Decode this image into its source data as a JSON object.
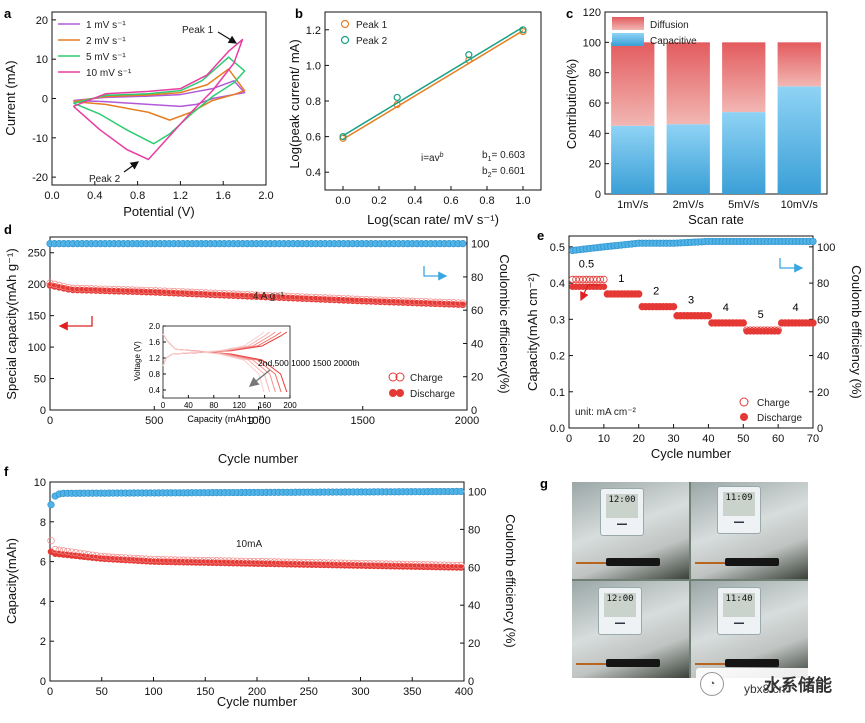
{
  "chart_data": [
    {
      "panel": "a",
      "type": "line",
      "xlabel": "Potential (V)",
      "ylabel": "Current (mA)",
      "xlim": [
        0.0,
        2.0
      ],
      "ylim": [
        -22,
        22
      ],
      "xticks": [
        "0.0",
        "0.4",
        "0.8",
        "1.2",
        "1.6",
        "2.0"
      ],
      "yticks": [
        "-20",
        "-10",
        "0",
        "10",
        "20"
      ],
      "legend": [
        "1 mV s⁻¹",
        "2 mV s⁻¹",
        "5 mV s⁻¹",
        "10 mV s⁻¹"
      ],
      "colors": [
        "#b05ad9",
        "#e67e22",
        "#2ecc71",
        "#e83ca0"
      ],
      "series": [
        {
          "name": "1 mV s⁻¹",
          "x": [
            0.2,
            0.5,
            0.9,
            1.2,
            1.5,
            1.7,
            1.8,
            1.7,
            1.5,
            1.35,
            1.2,
            0.9,
            0.5,
            0.2
          ],
          "y": [
            -0.5,
            0.3,
            0.6,
            1.0,
            2.5,
            4.5,
            1.5,
            1.0,
            0.0,
            -1.5,
            -2.0,
            -1.5,
            -0.8,
            -0.5
          ]
        },
        {
          "name": "2 mV s⁻¹",
          "x": [
            0.2,
            0.5,
            0.9,
            1.2,
            1.45,
            1.65,
            1.8,
            1.7,
            1.5,
            1.3,
            1.1,
            0.9,
            0.5,
            0.2
          ],
          "y": [
            -0.8,
            0.5,
            0.9,
            1.5,
            3.5,
            7.5,
            2.0,
            1.0,
            -0.5,
            -3.5,
            -5.5,
            -3.5,
            -1.5,
            -0.8
          ]
        },
        {
          "name": "5 mV s⁻¹",
          "x": [
            0.2,
            0.5,
            0.9,
            1.2,
            1.4,
            1.65,
            1.8,
            1.7,
            1.5,
            1.3,
            1.1,
            0.95,
            0.7,
            0.45,
            0.2
          ],
          "y": [
            -1.2,
            0.8,
            1.2,
            2.0,
            4.5,
            10.5,
            7.0,
            4.0,
            0.5,
            -4.0,
            -9.0,
            -11.5,
            -8.0,
            -4.0,
            -1.2
          ]
        },
        {
          "name": "10 mV s⁻¹",
          "x": [
            0.2,
            0.5,
            0.9,
            1.2,
            1.45,
            1.65,
            1.78,
            1.7,
            1.5,
            1.3,
            1.1,
            0.9,
            0.7,
            0.45,
            0.2
          ],
          "y": [
            -2.0,
            1.2,
            1.8,
            2.5,
            6.0,
            12.0,
            15.0,
            9.0,
            2.0,
            -3.5,
            -9.5,
            -15.5,
            -13.0,
            -8.0,
            -2.0
          ]
        }
      ],
      "annotations": [
        "Peak 1",
        "Peak 2"
      ]
    },
    {
      "panel": "b",
      "type": "scatter",
      "xlabel": "Log(scan rate/ mV s⁻¹)",
      "ylabel": "Log(peak current/ mA)",
      "xlim": [
        -0.1,
        1.1
      ],
      "ylim": [
        0.3,
        1.3
      ],
      "xticks": [
        "0.0",
        "0.2",
        "0.4",
        "0.6",
        "0.8",
        "1.0"
      ],
      "yticks": [
        "0.4",
        "0.6",
        "0.8",
        "1.0",
        "1.2"
      ],
      "series": [
        {
          "name": "Peak 1",
          "color": "#e67e22",
          "x": [
            0.0,
            0.301,
            0.699,
            1.0
          ],
          "y": [
            0.59,
            0.78,
            1.03,
            1.19
          ],
          "fit": [
            [
              0.0,
              0.585
            ],
            [
              1.0,
              1.195
            ]
          ]
        },
        {
          "name": "Peak 2",
          "color": "#16a085",
          "x": [
            0.0,
            0.301,
            0.699,
            1.0
          ],
          "y": [
            0.6,
            0.82,
            1.06,
            1.2
          ],
          "fit": [
            [
              0.0,
              0.605
            ],
            [
              1.0,
              1.215
            ]
          ]
        }
      ],
      "equation": "i=av",
      "equation_exp": "b",
      "b1": "= 0.603",
      "b2": "= 0.601"
    },
    {
      "panel": "c",
      "type": "bar",
      "xlabel": "Scan rate",
      "ylabel": "Contribution(%)",
      "ylim": [
        0,
        120
      ],
      "yticks": [
        "0",
        "20",
        "40",
        "60",
        "80",
        "100",
        "120"
      ],
      "categories": [
        "1mV/s",
        "2mV/s",
        "5mV/s",
        "10mV/s"
      ],
      "series": [
        {
          "name": "Capacitive",
          "color": "#5bb8e8",
          "values": [
            45,
            46,
            54,
            71
          ]
        },
        {
          "name": "Diffusion",
          "color": "#e8787a",
          "values": [
            55,
            54,
            46,
            29
          ]
        }
      ],
      "legend_order": [
        "Diffusion",
        "Capacitive"
      ]
    },
    {
      "panel": "d",
      "type": "scatter",
      "xlabel": "Cycle number",
      "ylabel": "Special capacity(mAh g⁻¹)",
      "y2label": "Coulombic efficiency(%)",
      "xlim": [
        0,
        2000
      ],
      "ylim": [
        0,
        275
      ],
      "y2lim": [
        0,
        104
      ],
      "xticks": [
        "0",
        "500",
        "1000",
        "1500",
        "2000"
      ],
      "yticks": [
        "0",
        "50",
        "100",
        "150",
        "200",
        "250"
      ],
      "y2ticks": [
        "0",
        "20",
        "40",
        "60",
        "80",
        "100"
      ],
      "series": [
        {
          "name": "Coulombic efficiency",
          "axis": "right",
          "x": [
            0,
            2000
          ],
          "y": [
            100,
            100
          ]
        },
        {
          "name": "Charge",
          "axis": "left",
          "x": [
            0,
            100,
            500,
            1000,
            1500,
            2000
          ],
          "y": [
            200,
            192,
            188,
            181,
            174,
            168
          ]
        },
        {
          "name": "Discharge",
          "axis": "left",
          "x": [
            0,
            100,
            500,
            1000,
            1500,
            2000
          ],
          "y": [
            198,
            191,
            187,
            180,
            173,
            167
          ]
        }
      ],
      "legend": [
        "Charge",
        "Discharge"
      ],
      "annotation": "4 A g⁻¹",
      "inset": {
        "xlabel": "Capacity (mAh g⁻¹)",
        "ylabel": "Voltage (V)",
        "xticks": [
          "0",
          "40",
          "80",
          "120",
          "160",
          "200"
        ],
        "yticks": [
          "0.4",
          "0.8",
          "1.2",
          "1.6",
          "2.0"
        ],
        "label": "2nd,500 1000 1500 2000th"
      }
    },
    {
      "panel": "e",
      "type": "scatter",
      "xlabel": "Cycle number",
      "ylabel": "Capacity(mAh cm⁻²)",
      "y2label": "Coulomb efficiency (%)",
      "xlim": [
        0,
        70
      ],
      "ylim": [
        0.0,
        0.53
      ],
      "y2lim": [
        0,
        106
      ],
      "xticks": [
        "0",
        "10",
        "20",
        "30",
        "40",
        "50",
        "60",
        "70"
      ],
      "yticks": [
        "0.0",
        "0.1",
        "0.2",
        "0.3",
        "0.4",
        "0.5"
      ],
      "y2ticks": [
        "0",
        "20",
        "40",
        "60",
        "80",
        "100"
      ],
      "rate_labels": [
        "0.5",
        "1",
        "2",
        "3",
        "4",
        "5",
        "4"
      ],
      "rate_values": [
        0.41,
        0.37,
        0.335,
        0.31,
        0.29,
        0.27,
        0.29
      ],
      "series": [
        {
          "name": "Charge",
          "axis": "left",
          "values": [
            0.41,
            0.37,
            0.335,
            0.31,
            0.29,
            0.27,
            0.29
          ]
        },
        {
          "name": "Discharge",
          "axis": "left",
          "values": [
            0.39,
            0.37,
            0.335,
            0.31,
            0.29,
            0.267,
            0.29
          ]
        },
        {
          "name": "Coulomb efficiency",
          "axis": "right",
          "x": [
            1,
            10,
            20,
            30,
            40,
            50,
            60,
            70
          ],
          "y": [
            98,
            100,
            102,
            102,
            103,
            103,
            103,
            103
          ]
        }
      ],
      "legend": [
        "Charge",
        "Discharge"
      ],
      "unit_label": "unit: mA cm⁻²"
    },
    {
      "panel": "f",
      "type": "scatter",
      "xlabel": "Cycle number",
      "ylabel": "Capacity(mAh)",
      "y2label": "Coulomb efficiency (%)",
      "xlim": [
        0,
        400
      ],
      "ylim": [
        0,
        10
      ],
      "y2lim": [
        0,
        105
      ],
      "xticks": [
        "0",
        "50",
        "100",
        "150",
        "200",
        "250",
        "300",
        "350",
        "400"
      ],
      "yticks": [
        "0",
        "2",
        "4",
        "6",
        "8",
        "10"
      ],
      "y2ticks": [
        "0",
        "20",
        "40",
        "60",
        "80",
        "100"
      ],
      "series": [
        {
          "name": "Coulomb efficiency",
          "axis": "right",
          "x": [
            1,
            3,
            10,
            400
          ],
          "y": [
            93,
            97,
            99,
            100
          ]
        },
        {
          "name": "Charge",
          "axis": "left",
          "x": [
            1,
            5,
            50,
            100,
            200,
            300,
            400
          ],
          "y": [
            7.0,
            6.55,
            6.2,
            6.05,
            5.95,
            5.85,
            5.75
          ]
        },
        {
          "name": "Discharge",
          "axis": "left",
          "x": [
            1,
            5,
            50,
            100,
            200,
            300,
            400
          ],
          "y": [
            6.5,
            6.4,
            6.15,
            6.0,
            5.9,
            5.8,
            5.7
          ]
        }
      ],
      "annotation": "10mA"
    }
  ],
  "panel_labels": [
    "a",
    "b",
    "c",
    "d",
    "e",
    "f",
    "g"
  ],
  "photo_g": {
    "description_label": "g",
    "clock_readings": [
      "12:00",
      "11:09",
      "12:00",
      "11:40"
    ]
  },
  "watermark": {
    "site": "ybx8.cn",
    "text": "水系储能"
  }
}
